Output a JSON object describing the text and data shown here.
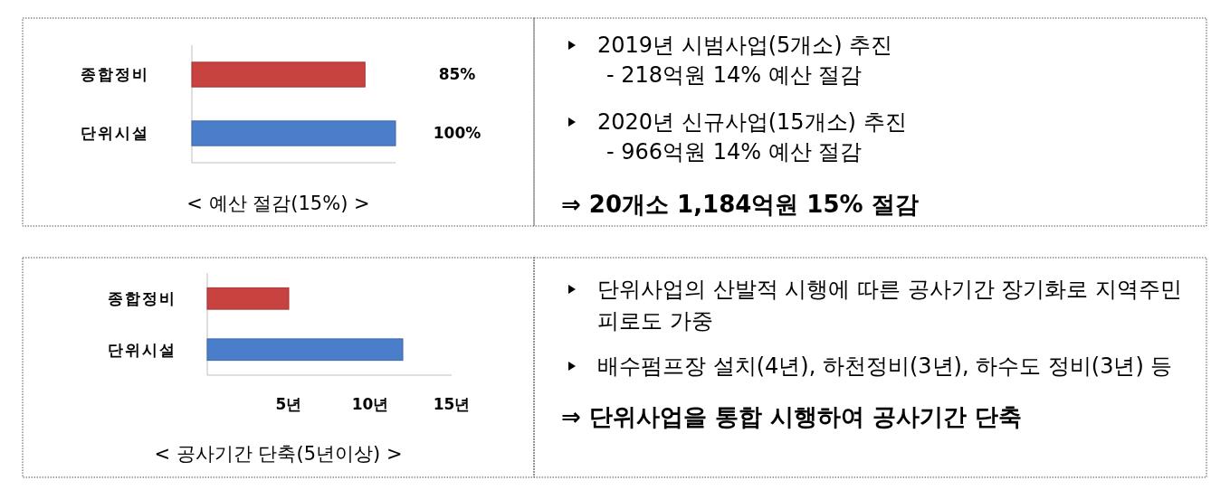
{
  "chart_data": [
    {
      "type": "bar",
      "orientation": "horizontal",
      "title": "< 예산 절감(15%) >",
      "categories": [
        "종합정비",
        "단위시설"
      ],
      "values": [
        85,
        100
      ],
      "colors": [
        "#c8423f",
        "#4a7ecb"
      ],
      "value_labels": [
        "85%",
        "100%"
      ],
      "xlim": [
        0,
        100
      ],
      "tick_labels": "y"
    },
    {
      "type": "other",
      "annotations": [
        "2019년 시범사업(5개소) 추진\n- 218억원 14% 예산 절감",
        "2020년 신규사업(15개소) 추진\n- 966억원 14% 예산 절감",
        "⇒ 20개소 1,184억원 15% 절감"
      ]
    },
    {
      "type": "bar",
      "orientation": "horizontal",
      "title": "< 공사기간 단축(5년이상) >",
      "categories": [
        "종합정비",
        "단위시설"
      ],
      "values": [
        5,
        12
      ],
      "colors": [
        "#c8423f",
        "#4a7ecb"
      ],
      "xlim": [
        0,
        15
      ],
      "xticks": [
        {
          "value": 5,
          "label": "5년"
        },
        {
          "value": 10,
          "label": "10년"
        },
        {
          "value": 15,
          "label": "15년"
        }
      ]
    },
    {
      "type": "other",
      "annotations": [
        "단위사업의 산발적 시행에 따른 공사기간 장기화로 지역주민 피로도 가중",
        "배수펌프장 설치(4년), 하천정비(3년), 하수도 정비(3년) 등",
        "⇒ 단위사업을 통합 시행하여 공사기간 단축"
      ]
    }
  ]
}
